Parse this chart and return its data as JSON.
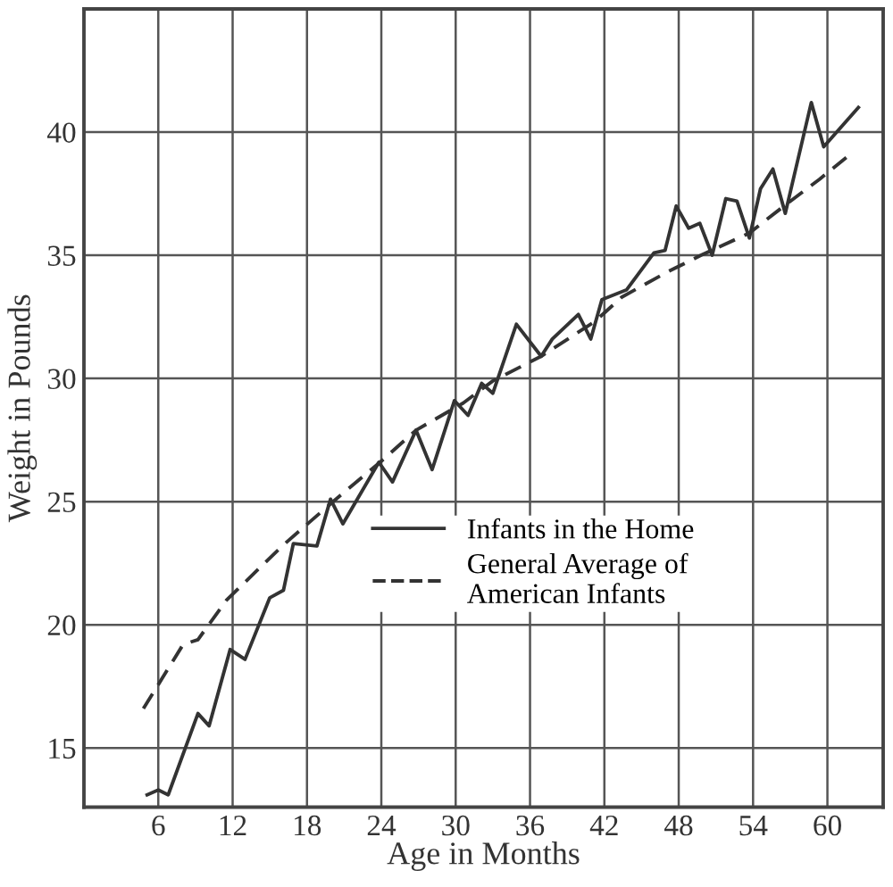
{
  "chart_data": {
    "type": "line",
    "xlabel": "Age in Months",
    "ylabel": "Weight in Pounds",
    "xlim": [
      0,
      64.5
    ],
    "ylim": [
      12.6,
      45
    ],
    "xticks": [
      6,
      12,
      18,
      24,
      30,
      36,
      42,
      48,
      54,
      60
    ],
    "yticks": [
      15,
      20,
      25,
      30,
      35,
      40
    ],
    "grid": true,
    "legend": "center right",
    "marker": "none",
    "series": [
      {
        "name": "Infants in the Home",
        "color": "#333333",
        "line_style": "solid",
        "x": [
          5.1,
          6,
          6.8,
          9.2,
          10.1,
          11.8,
          13,
          15,
          16.1,
          16.9,
          18.8,
          19.9,
          20.9,
          23.8,
          24.9,
          26.8,
          28.1,
          29.9,
          31,
          32.1,
          33,
          34.9,
          36.9,
          37.8,
          39.9,
          40.9,
          41.8,
          43.8,
          46,
          46.9,
          47.8,
          48.8,
          49.7,
          50.7,
          51.8,
          52.7,
          53.7,
          54.6,
          55.6,
          56.6,
          58.7,
          59.7,
          62.5
        ],
        "values": [
          13.1,
          13.3,
          13.1,
          16.4,
          15.9,
          19.0,
          18.6,
          21.1,
          21.4,
          23.3,
          23.2,
          25.1,
          24.1,
          26.6,
          25.8,
          27.9,
          26.3,
          29.1,
          28.5,
          29.8,
          29.4,
          32.2,
          30.9,
          31.6,
          32.6,
          31.6,
          33.2,
          33.6,
          35.1,
          35.2,
          37.0,
          36.1,
          36.3,
          35.0,
          37.3,
          37.2,
          35.7,
          37.7,
          38.5,
          36.7,
          41.2,
          39.4,
          41.0
        ]
      },
      {
        "name": "General Average of\nAmerican Infants",
        "color": "#333333",
        "line_style": "dashed",
        "x": [
          4.8,
          8,
          9.2,
          11.5,
          16,
          20.1,
          23.9,
          26.8,
          30.6,
          33,
          36.9,
          41.2,
          43.4,
          47,
          49.8,
          53.7,
          56.5,
          59.4,
          61.6
        ],
        "values": [
          16.6,
          19.2,
          19.4,
          21.0,
          23.2,
          25.0,
          26.6,
          27.9,
          29.0,
          29.9,
          30.9,
          32.3,
          33.3,
          34.3,
          35.0,
          35.9,
          37.0,
          38.1,
          39.0
        ]
      }
    ]
  }
}
